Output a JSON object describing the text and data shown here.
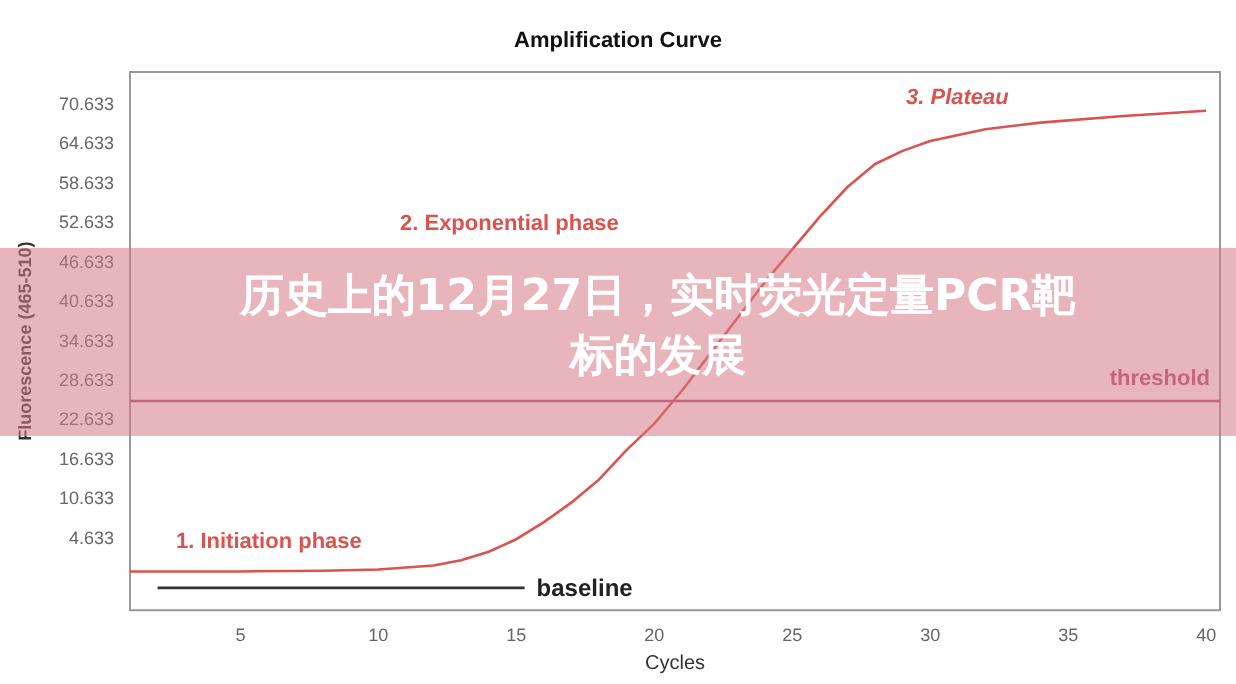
{
  "chart_data": {
    "type": "line",
    "title": "Amplification Curve",
    "xlabel": "Cycles",
    "ylabel": "Fluorescence (465-510)",
    "xlim": [
      1,
      40.5
    ],
    "xticks": [
      5,
      10,
      15,
      20,
      25,
      30,
      35,
      40
    ],
    "ylim": [
      -6.4,
      75.5
    ],
    "yticks": [
      4.633,
      10.633,
      16.633,
      22.633,
      28.633,
      34.633,
      40.633,
      46.633,
      52.633,
      58.633,
      64.633,
      70.633
    ],
    "grid": false,
    "legend": false,
    "marker": "none",
    "line_style": "solid",
    "series": [
      {
        "color": "#d9534f",
        "x": [
          1,
          5,
          8,
          10,
          12,
          13,
          14,
          15,
          16,
          17,
          18,
          19,
          20,
          21,
          22,
          23,
          24,
          25,
          26,
          27,
          28,
          29,
          30,
          32,
          34,
          37,
          40
        ],
        "values": [
          -0.5,
          -0.5,
          -0.4,
          -0.2,
          0.4,
          1.2,
          2.5,
          4.4,
          7,
          10,
          13.5,
          18,
          22,
          27,
          32.5,
          38,
          43.5,
          48.5,
          53.5,
          58,
          61.5,
          63.5,
          65,
          66.8,
          67.8,
          68.8,
          69.6
        ]
      },
      {
        "name": "baseline",
        "color": "#333333",
        "x": [
          2,
          15.3
        ],
        "values": [
          -3,
          -3
        ]
      }
    ],
    "ref_lines": [
      {
        "axis": "y",
        "value": 25.6,
        "label": "threshold",
        "color": "#b0506a"
      }
    ],
    "annotations": [
      "1. Initiation phase",
      "2. Exponential phase",
      "3. Plateau",
      "历史上的12月27日，实时荧光定量PCR靶标的发展"
    ]
  }
}
